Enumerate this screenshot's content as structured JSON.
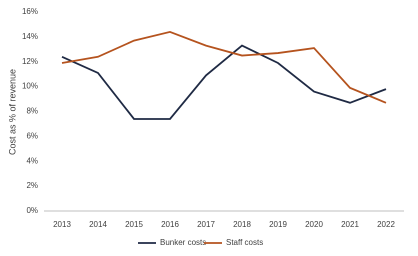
{
  "chart_data": {
    "type": "line",
    "y_label": "Cost as % of revenue",
    "categories": [
      "2013",
      "2014",
      "2015",
      "2016",
      "2017",
      "2018",
      "2019",
      "2020",
      "2021",
      "2022"
    ],
    "series": [
      {
        "name": "Bunker costs",
        "color": "#1f2a44",
        "values": [
          12.4,
          11.1,
          7.4,
          7.4,
          10.9,
          13.3,
          11.9,
          9.6,
          8.7,
          9.8
        ]
      },
      {
        "name": "Staff costs",
        "color": "#b5531e",
        "values": [
          11.9,
          12.4,
          13.7,
          14.4,
          13.3,
          12.5,
          12.7,
          13.1,
          9.9,
          8.7
        ]
      }
    ],
    "ylim": [
      0,
      16
    ],
    "yticks": [
      {
        "value": 0,
        "label": "0%"
      },
      {
        "value": 2,
        "label": "2%"
      },
      {
        "value": 4,
        "label": "4%"
      },
      {
        "value": 6,
        "label": "6%"
      },
      {
        "value": 8,
        "label": "8%"
      },
      {
        "value": 10,
        "label": "10%"
      },
      {
        "value": 12,
        "label": "12%"
      },
      {
        "value": 14,
        "label": "14%"
      },
      {
        "value": 16,
        "label": "16%"
      }
    ],
    "grid": false,
    "legend": "bottom"
  }
}
